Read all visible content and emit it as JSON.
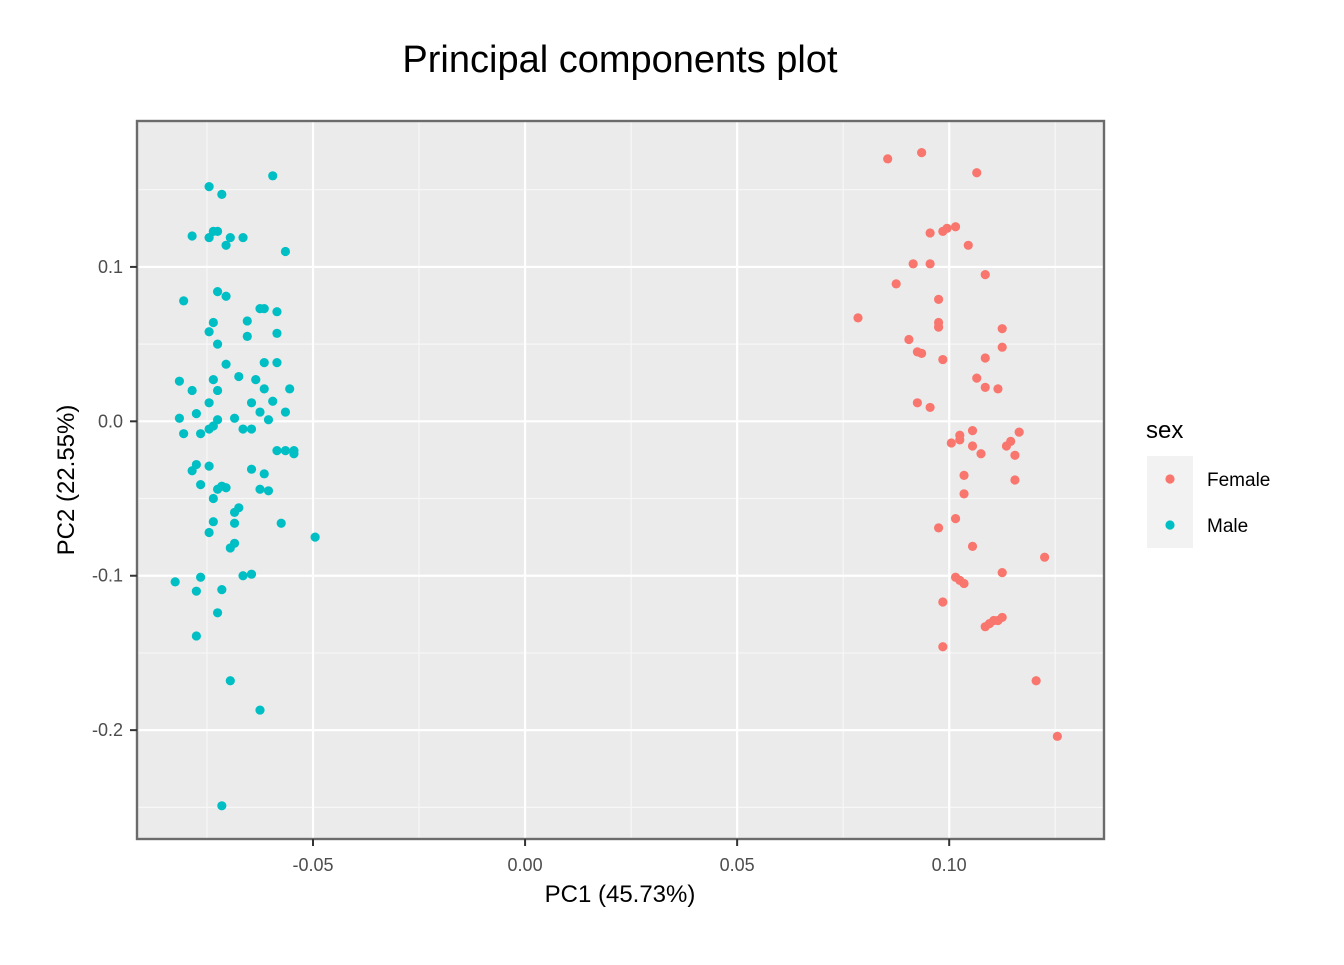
{
  "chart_data": {
    "type": "scatter",
    "title": "Principal components plot",
    "xlabel": "PC1 (45.73%)",
    "ylabel": "PC2 (22.55%)",
    "xlim": [
      -0.0915,
      0.1365
    ],
    "ylim": [
      -0.2705,
      0.1945
    ],
    "x_ticks": [
      -0.05,
      0.0,
      0.05,
      0.1
    ],
    "x_tick_labels": [
      "-0.05",
      "0.00",
      "0.05",
      "0.10"
    ],
    "y_ticks": [
      -0.2,
      -0.1,
      0.0,
      0.1
    ],
    "y_tick_labels": [
      "-0.2",
      "-0.1",
      "0.0",
      "0.1"
    ],
    "x_minor": [
      -0.075,
      -0.025,
      0.025,
      0.075,
      0.125
    ],
    "y_minor": [
      -0.25,
      -0.15,
      -0.05,
      0.05,
      0.15
    ],
    "grid": true,
    "legend": {
      "title": "sex",
      "position": "right"
    },
    "series": [
      {
        "name": "Female",
        "color": "#F8766D",
        "points": [
          [
            0.0855,
            0.17
          ],
          [
            0.0935,
            0.174
          ],
          [
            0.1065,
            0.161
          ],
          [
            0.1015,
            0.126
          ],
          [
            0.0995,
            0.125
          ],
          [
            0.0985,
            0.123
          ],
          [
            0.0955,
            0.122
          ],
          [
            0.1045,
            0.114
          ],
          [
            0.0915,
            0.102
          ],
          [
            0.0955,
            0.102
          ],
          [
            0.1085,
            0.095
          ],
          [
            0.0875,
            0.089
          ],
          [
            0.0975,
            0.079
          ],
          [
            0.0785,
            0.067
          ],
          [
            0.0975,
            0.064
          ],
          [
            0.0975,
            0.061
          ],
          [
            0.1125,
            0.06
          ],
          [
            0.0905,
            0.053
          ],
          [
            0.0925,
            0.045
          ],
          [
            0.0935,
            0.044
          ],
          [
            0.1125,
            0.048
          ],
          [
            0.1085,
            0.041
          ],
          [
            0.0985,
            0.04
          ],
          [
            0.1065,
            0.028
          ],
          [
            0.1085,
            0.022
          ],
          [
            0.1115,
            0.021
          ],
          [
            0.0925,
            0.012
          ],
          [
            0.0955,
            0.009
          ],
          [
            0.1055,
            -0.006
          ],
          [
            0.1025,
            -0.009
          ],
          [
            0.1165,
            -0.007
          ],
          [
            0.1025,
            -0.012
          ],
          [
            0.1005,
            -0.014
          ],
          [
            0.1145,
            -0.013
          ],
          [
            0.1135,
            -0.016
          ],
          [
            0.1055,
            -0.016
          ],
          [
            0.1075,
            -0.021
          ],
          [
            0.1155,
            -0.022
          ],
          [
            0.1035,
            -0.035
          ],
          [
            0.1155,
            -0.038
          ],
          [
            0.1035,
            -0.047
          ],
          [
            0.1015,
            -0.063
          ],
          [
            0.0975,
            -0.069
          ],
          [
            0.1055,
            -0.081
          ],
          [
            0.1225,
            -0.088
          ],
          [
            0.1125,
            -0.098
          ],
          [
            0.1015,
            -0.101
          ],
          [
            0.1025,
            -0.103
          ],
          [
            0.1035,
            -0.105
          ],
          [
            0.0985,
            -0.117
          ],
          [
            0.1125,
            -0.127
          ],
          [
            0.1105,
            -0.129
          ],
          [
            0.1115,
            -0.129
          ],
          [
            0.1095,
            -0.131
          ],
          [
            0.1085,
            -0.133
          ],
          [
            0.0985,
            -0.146
          ],
          [
            0.1205,
            -0.168
          ],
          [
            0.1255,
            -0.204
          ]
        ]
      },
      {
        "name": "Male",
        "color": "#00BFC4",
        "points": [
          [
            -0.0595,
            0.159
          ],
          [
            -0.0745,
            0.152
          ],
          [
            -0.0715,
            0.147
          ],
          [
            -0.0735,
            0.123
          ],
          [
            -0.0725,
            0.123
          ],
          [
            -0.0785,
            0.12
          ],
          [
            -0.0745,
            0.119
          ],
          [
            -0.0695,
            0.119
          ],
          [
            -0.0665,
            0.119
          ],
          [
            -0.0705,
            0.114
          ],
          [
            -0.0565,
            0.11
          ],
          [
            -0.0725,
            0.084
          ],
          [
            -0.0705,
            0.081
          ],
          [
            -0.0805,
            0.078
          ],
          [
            -0.0615,
            0.073
          ],
          [
            -0.0625,
            0.073
          ],
          [
            -0.0585,
            0.071
          ],
          [
            -0.0655,
            0.065
          ],
          [
            -0.0735,
            0.064
          ],
          [
            -0.0745,
            0.058
          ],
          [
            -0.0585,
            0.057
          ],
          [
            -0.0655,
            0.055
          ],
          [
            -0.0725,
            0.05
          ],
          [
            -0.0705,
            0.037
          ],
          [
            -0.0615,
            0.038
          ],
          [
            -0.0585,
            0.038
          ],
          [
            -0.0675,
            0.029
          ],
          [
            -0.0735,
            0.027
          ],
          [
            -0.0815,
            0.026
          ],
          [
            -0.0635,
            0.027
          ],
          [
            -0.0785,
            0.02
          ],
          [
            -0.0725,
            0.02
          ],
          [
            -0.0615,
            0.021
          ],
          [
            -0.0555,
            0.021
          ],
          [
            -0.0745,
            0.012
          ],
          [
            -0.0645,
            0.012
          ],
          [
            -0.0595,
            0.013
          ],
          [
            -0.0625,
            0.006
          ],
          [
            -0.0775,
            0.005
          ],
          [
            -0.0565,
            0.006
          ],
          [
            -0.0815,
            0.002
          ],
          [
            -0.0685,
            0.002
          ],
          [
            -0.0725,
            0.001
          ],
          [
            -0.0605,
            0.001
          ],
          [
            -0.0735,
            -0.003
          ],
          [
            -0.0745,
            -0.005
          ],
          [
            -0.0665,
            -0.005
          ],
          [
            -0.0645,
            -0.005
          ],
          [
            -0.0805,
            -0.008
          ],
          [
            -0.0765,
            -0.008
          ],
          [
            -0.0585,
            -0.019
          ],
          [
            -0.0565,
            -0.019
          ],
          [
            -0.0545,
            -0.019
          ],
          [
            -0.0545,
            -0.021
          ],
          [
            -0.0775,
            -0.028
          ],
          [
            -0.0745,
            -0.029
          ],
          [
            -0.0785,
            -0.032
          ],
          [
            -0.0645,
            -0.031
          ],
          [
            -0.0615,
            -0.034
          ],
          [
            -0.0765,
            -0.041
          ],
          [
            -0.0715,
            -0.042
          ],
          [
            -0.0705,
            -0.043
          ],
          [
            -0.0725,
            -0.044
          ],
          [
            -0.0625,
            -0.044
          ],
          [
            -0.0605,
            -0.045
          ],
          [
            -0.0735,
            -0.05
          ],
          [
            -0.0675,
            -0.056
          ],
          [
            -0.0685,
            -0.059
          ],
          [
            -0.0735,
            -0.065
          ],
          [
            -0.0685,
            -0.066
          ],
          [
            -0.0575,
            -0.066
          ],
          [
            -0.0745,
            -0.072
          ],
          [
            -0.0495,
            -0.075
          ],
          [
            -0.0685,
            -0.079
          ],
          [
            -0.0695,
            -0.082
          ],
          [
            -0.0825,
            -0.104
          ],
          [
            -0.0765,
            -0.101
          ],
          [
            -0.0665,
            -0.1
          ],
          [
            -0.0645,
            -0.099
          ],
          [
            -0.0775,
            -0.11
          ],
          [
            -0.0715,
            -0.109
          ],
          [
            -0.0725,
            -0.124
          ],
          [
            -0.0775,
            -0.139
          ],
          [
            -0.0695,
            -0.168
          ],
          [
            -0.0625,
            -0.187
          ],
          [
            -0.0715,
            -0.249
          ]
        ]
      }
    ]
  }
}
